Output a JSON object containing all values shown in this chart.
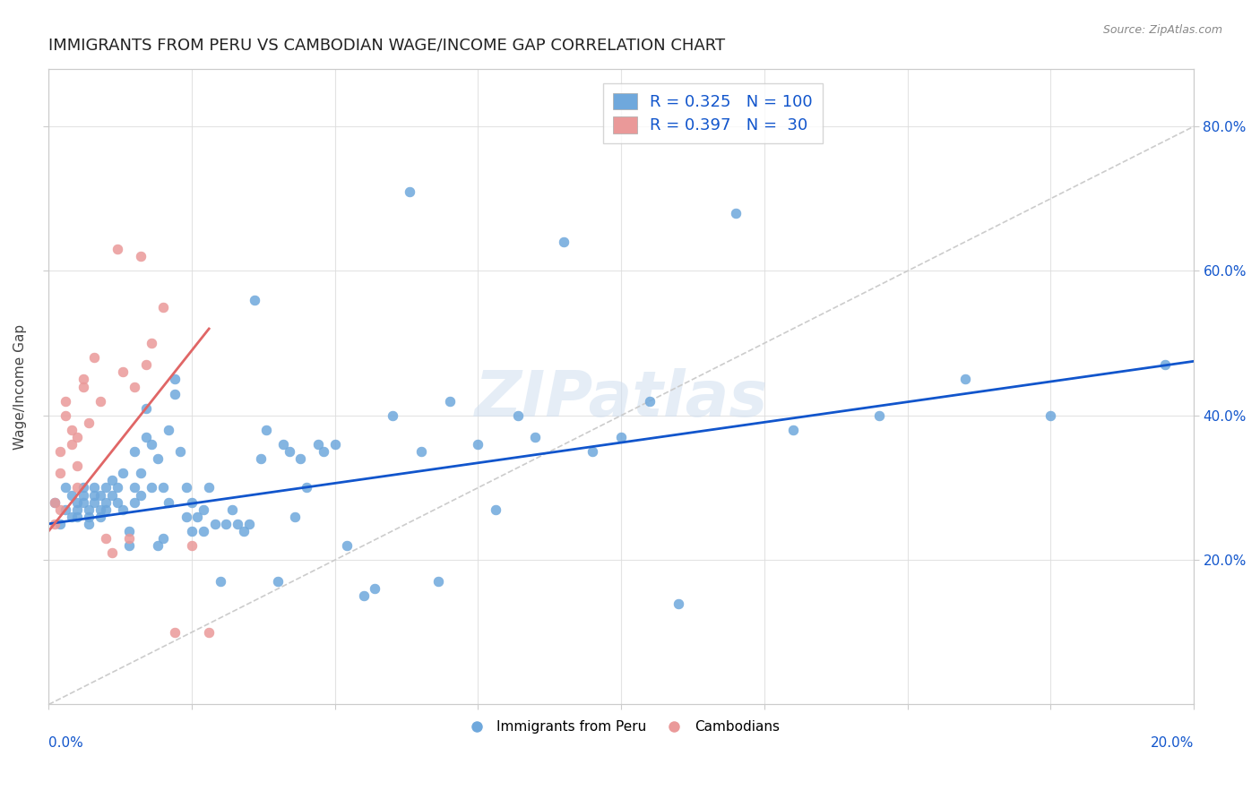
{
  "title": "IMMIGRANTS FROM PERU VS CAMBODIAN WAGE/INCOME GAP CORRELATION CHART",
  "source": "Source: ZipAtlas.com",
  "ylabel": "Wage/Income Gap",
  "watermark": "ZIPatlas",
  "blue_color": "#6fa8dc",
  "pink_color": "#ea9999",
  "blue_line_color": "#1155cc",
  "pink_line_color": "#e06666",
  "diag_line_color": "#cccccc",
  "peru_scatter_x": [
    0.001,
    0.002,
    0.003,
    0.003,
    0.004,
    0.004,
    0.005,
    0.005,
    0.005,
    0.006,
    0.006,
    0.006,
    0.007,
    0.007,
    0.007,
    0.008,
    0.008,
    0.008,
    0.009,
    0.009,
    0.009,
    0.01,
    0.01,
    0.01,
    0.011,
    0.011,
    0.012,
    0.012,
    0.013,
    0.013,
    0.014,
    0.014,
    0.015,
    0.015,
    0.015,
    0.016,
    0.016,
    0.017,
    0.017,
    0.018,
    0.018,
    0.019,
    0.019,
    0.02,
    0.02,
    0.021,
    0.021,
    0.022,
    0.022,
    0.023,
    0.024,
    0.024,
    0.025,
    0.025,
    0.026,
    0.027,
    0.027,
    0.028,
    0.029,
    0.03,
    0.031,
    0.032,
    0.033,
    0.034,
    0.035,
    0.036,
    0.037,
    0.038,
    0.04,
    0.041,
    0.042,
    0.043,
    0.044,
    0.045,
    0.047,
    0.048,
    0.05,
    0.052,
    0.055,
    0.057,
    0.06,
    0.063,
    0.065,
    0.068,
    0.07,
    0.075,
    0.078,
    0.082,
    0.085,
    0.09,
    0.095,
    0.1,
    0.105,
    0.11,
    0.12,
    0.13,
    0.145,
    0.16,
    0.175,
    0.195
  ],
  "peru_scatter_y": [
    0.28,
    0.25,
    0.27,
    0.3,
    0.26,
    0.29,
    0.28,
    0.27,
    0.26,
    0.3,
    0.29,
    0.28,
    0.27,
    0.26,
    0.25,
    0.3,
    0.29,
    0.28,
    0.27,
    0.26,
    0.29,
    0.28,
    0.3,
    0.27,
    0.31,
    0.29,
    0.3,
    0.28,
    0.32,
    0.27,
    0.22,
    0.24,
    0.3,
    0.28,
    0.35,
    0.32,
    0.29,
    0.37,
    0.41,
    0.3,
    0.36,
    0.34,
    0.22,
    0.23,
    0.3,
    0.28,
    0.38,
    0.43,
    0.45,
    0.35,
    0.26,
    0.3,
    0.24,
    0.28,
    0.26,
    0.24,
    0.27,
    0.3,
    0.25,
    0.17,
    0.25,
    0.27,
    0.25,
    0.24,
    0.25,
    0.56,
    0.34,
    0.38,
    0.17,
    0.36,
    0.35,
    0.26,
    0.34,
    0.3,
    0.36,
    0.35,
    0.36,
    0.22,
    0.15,
    0.16,
    0.4,
    0.71,
    0.35,
    0.17,
    0.42,
    0.36,
    0.27,
    0.4,
    0.37,
    0.64,
    0.35,
    0.37,
    0.42,
    0.14,
    0.68,
    0.38,
    0.4,
    0.45,
    0.4,
    0.47
  ],
  "camb_scatter_x": [
    0.001,
    0.001,
    0.002,
    0.002,
    0.002,
    0.003,
    0.003,
    0.004,
    0.004,
    0.005,
    0.005,
    0.005,
    0.006,
    0.006,
    0.007,
    0.008,
    0.009,
    0.01,
    0.011,
    0.012,
    0.013,
    0.014,
    0.015,
    0.016,
    0.017,
    0.018,
    0.02,
    0.022,
    0.025,
    0.028
  ],
  "camb_scatter_y": [
    0.28,
    0.25,
    0.32,
    0.35,
    0.27,
    0.4,
    0.42,
    0.36,
    0.38,
    0.3,
    0.33,
    0.37,
    0.45,
    0.44,
    0.39,
    0.48,
    0.42,
    0.23,
    0.21,
    0.63,
    0.46,
    0.23,
    0.44,
    0.62,
    0.47,
    0.5,
    0.55,
    0.1,
    0.22,
    0.1
  ],
  "peru_line_x": [
    0.0,
    0.2
  ],
  "peru_line_y": [
    0.25,
    0.475
  ],
  "camb_line_x": [
    0.0,
    0.028
  ],
  "camb_line_y": [
    0.24,
    0.52
  ],
  "diag_line_x": [
    0.0,
    0.2
  ],
  "diag_line_y": [
    0.0,
    0.8
  ],
  "xlim": [
    0.0,
    0.2
  ],
  "ylim": [
    0.0,
    0.88
  ],
  "xticks": [
    0.0,
    0.025,
    0.05,
    0.075,
    0.1,
    0.125,
    0.15,
    0.175,
    0.2
  ],
  "yticks_right": [
    0.2,
    0.4,
    0.6,
    0.8
  ],
  "background_color": "#ffffff",
  "grid_color": "#dddddd"
}
